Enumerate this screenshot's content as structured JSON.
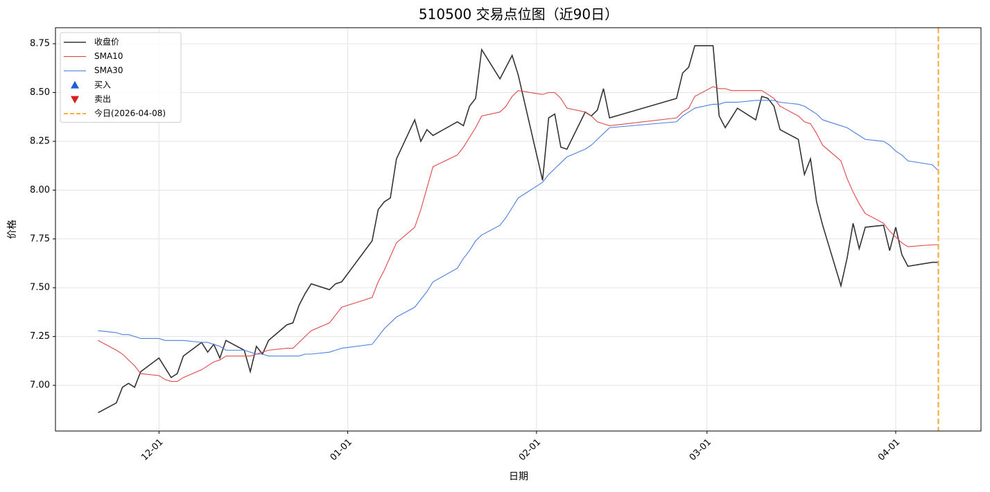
{
  "chart_data": {
    "type": "line",
    "title": "510500 交易点位图（近90日）",
    "xlabel": "日期",
    "ylabel": "价格",
    "x": [
      "11-21",
      "11-24",
      "11-25",
      "11-26",
      "11-27",
      "11-28",
      "12-01",
      "12-02",
      "12-03",
      "12-04",
      "12-05",
      "12-08",
      "12-09",
      "12-10",
      "12-11",
      "12-12",
      "12-15",
      "12-16",
      "12-17",
      "12-18",
      "12-19",
      "12-22",
      "12-23",
      "12-24",
      "12-25",
      "12-26",
      "12-29",
      "12-30",
      "12-31",
      "01-05",
      "01-06",
      "01-07",
      "01-08",
      "01-09",
      "01-12",
      "01-13",
      "01-14",
      "01-15",
      "01-19",
      "01-20",
      "01-21",
      "01-22",
      "01-23",
      "01-26",
      "01-27",
      "01-28",
      "01-29",
      "02-02",
      "02-03",
      "02-04",
      "02-05",
      "02-06",
      "02-09",
      "02-10",
      "02-11",
      "02-12",
      "02-13",
      "02-24",
      "02-25",
      "02-26",
      "02-27",
      "03-02",
      "03-03",
      "03-04",
      "03-05",
      "03-06",
      "03-09",
      "03-10",
      "03-11",
      "03-12",
      "03-13",
      "03-16",
      "03-17",
      "03-18",
      "03-19",
      "03-20",
      "03-23",
      "03-24",
      "03-25",
      "03-26",
      "03-27",
      "03-30",
      "03-31",
      "04-01",
      "04-02",
      "04-03",
      "04-07",
      "04-08"
    ],
    "series": [
      {
        "name": "收盘价",
        "color": "#333333",
        "kind": "line",
        "width": 1.6,
        "values": [
          6.86,
          6.91,
          6.99,
          7.01,
          6.99,
          7.07,
          7.14,
          7.09,
          7.04,
          7.06,
          7.15,
          7.22,
          7.17,
          7.21,
          7.14,
          7.23,
          7.18,
          7.07,
          7.2,
          7.16,
          7.23,
          7.31,
          7.32,
          7.41,
          7.47,
          7.52,
          7.49,
          7.52,
          7.53,
          7.74,
          7.9,
          7.94,
          7.96,
          8.16,
          8.36,
          8.25,
          8.31,
          8.28,
          8.35,
          8.33,
          8.43,
          8.47,
          8.72,
          8.57,
          8.63,
          8.69,
          8.59,
          8.05,
          8.37,
          8.39,
          8.22,
          8.21,
          8.4,
          8.38,
          8.41,
          8.52,
          8.37,
          8.47,
          8.6,
          8.63,
          8.74,
          8.74,
          8.38,
          8.32,
          8.37,
          8.42,
          8.36,
          8.48,
          8.47,
          8.43,
          8.31,
          8.26,
          8.08,
          8.16,
          7.94,
          7.82,
          7.51,
          7.65,
          7.83,
          7.7,
          7.81,
          7.82,
          7.69,
          7.81,
          7.67,
          7.61,
          7.63,
          7.63
        ]
      },
      {
        "name": "SMA10",
        "color": "#e04848",
        "kind": "line",
        "width": 1.1,
        "values": [
          7.23,
          7.18,
          7.16,
          7.13,
          7.1,
          7.06,
          7.05,
          7.03,
          7.02,
          7.02,
          7.04,
          7.08,
          7.1,
          7.12,
          7.13,
          7.15,
          7.15,
          7.15,
          7.16,
          7.17,
          7.18,
          7.19,
          7.19,
          7.22,
          7.25,
          7.28,
          7.32,
          7.36,
          7.4,
          7.45,
          7.53,
          7.59,
          7.66,
          7.73,
          7.81,
          7.9,
          8.01,
          8.12,
          8.18,
          8.22,
          8.27,
          8.32,
          8.38,
          8.4,
          8.43,
          8.48,
          8.51,
          8.49,
          8.5,
          8.5,
          8.47,
          8.42,
          8.4,
          8.38,
          8.35,
          8.34,
          8.33,
          8.37,
          8.4,
          8.42,
          8.48,
          8.53,
          8.52,
          8.52,
          8.51,
          8.51,
          8.51,
          8.51,
          8.49,
          8.47,
          8.43,
          8.38,
          8.35,
          8.34,
          8.29,
          8.23,
          8.15,
          8.06,
          7.99,
          7.93,
          7.88,
          7.83,
          7.79,
          7.76,
          7.73,
          7.71,
          7.72,
          7.72
        ]
      },
      {
        "name": "SMA30",
        "color": "#4a7fe0",
        "kind": "line",
        "width": 1.1,
        "values": [
          7.28,
          7.27,
          7.26,
          7.26,
          7.25,
          7.24,
          7.24,
          7.23,
          7.23,
          7.23,
          7.23,
          7.22,
          7.22,
          7.21,
          7.2,
          7.18,
          7.18,
          7.17,
          7.16,
          7.16,
          7.15,
          7.15,
          7.15,
          7.15,
          7.16,
          7.16,
          7.17,
          7.18,
          7.19,
          7.21,
          7.25,
          7.29,
          7.32,
          7.35,
          7.4,
          7.44,
          7.48,
          7.53,
          7.6,
          7.65,
          7.69,
          7.74,
          7.77,
          7.82,
          7.86,
          7.91,
          7.96,
          8.04,
          8.08,
          8.11,
          8.14,
          8.17,
          8.21,
          8.23,
          8.26,
          8.29,
          8.32,
          8.35,
          8.38,
          8.4,
          8.42,
          8.44,
          8.44,
          8.45,
          8.45,
          8.45,
          8.46,
          8.46,
          8.46,
          8.46,
          8.45,
          8.44,
          8.43,
          8.41,
          8.39,
          8.36,
          8.33,
          8.32,
          8.3,
          8.28,
          8.26,
          8.25,
          8.23,
          8.2,
          8.18,
          8.15,
          8.13,
          8.1
        ]
      },
      {
        "name": "买入",
        "color": "#1f5fdd",
        "kind": "scatter",
        "marker": "triangle-up",
        "values": []
      },
      {
        "name": "卖出",
        "color": "#d62020",
        "kind": "scatter",
        "marker": "triangle-down",
        "values": []
      }
    ],
    "vline": {
      "x": "04-08",
      "label": "今日(2026-04-08)",
      "color": "#f5b041"
    },
    "xlim": [
      "11-14",
      "04-15"
    ],
    "xticks": [
      "12-01",
      "01-01",
      "02-01",
      "03-01",
      "04-01"
    ],
    "ylim": [
      6.766,
      8.832
    ],
    "yticks": [
      {
        "value": 7,
        "label": "7.00"
      },
      {
        "value": 7.25,
        "label": "7.25"
      },
      {
        "value": 7.5,
        "label": "7.50"
      },
      {
        "value": 7.75,
        "label": "7.75"
      },
      {
        "value": 8,
        "label": "8.00"
      },
      {
        "value": 8.25,
        "label": "8.25"
      },
      {
        "value": 8.5,
        "label": "8.50"
      },
      {
        "value": 8.75,
        "label": "8.75"
      }
    ],
    "grid": true,
    "legend": "upper left"
  }
}
